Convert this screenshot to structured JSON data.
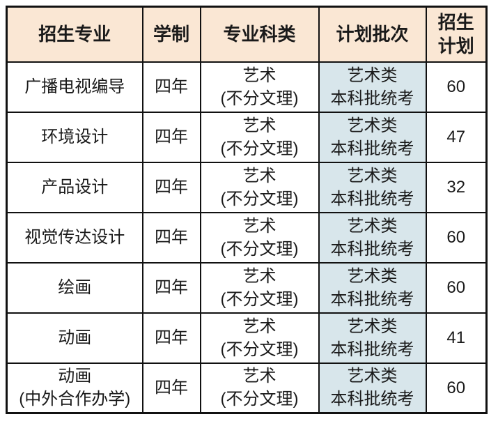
{
  "colors": {
    "page_background": "#FFFFFF",
    "header_background": "#FAE7D4",
    "batch_cell_background": "#D8E6EB",
    "border": "#111111",
    "text": "#1A1A1A"
  },
  "table": {
    "headers": {
      "major": "招生专业",
      "duration": "学制",
      "category": "专业科类",
      "batch": "计划批次",
      "quota_line1": "招生",
      "quota_line2": "计划"
    },
    "rows": [
      {
        "major": [
          "广播电视编导"
        ],
        "duration": "四年",
        "category": [
          "艺术",
          "(不分文理)"
        ],
        "batch": [
          "艺术类",
          "本科批统考"
        ],
        "quota": "60"
      },
      {
        "major": [
          "环境设计"
        ],
        "duration": "四年",
        "category": [
          "艺术",
          "(不分文理)"
        ],
        "batch": [
          "艺术类",
          "本科批统考"
        ],
        "quota": "47"
      },
      {
        "major": [
          "产品设计"
        ],
        "duration": "四年",
        "category": [
          "艺术",
          "(不分文理)"
        ],
        "batch": [
          "艺术类",
          "本科批统考"
        ],
        "quota": "32"
      },
      {
        "major": [
          "视觉传达设计"
        ],
        "duration": "四年",
        "category": [
          "艺术",
          "(不分文理)"
        ],
        "batch": [
          "艺术类",
          "本科批统考"
        ],
        "quota": "60"
      },
      {
        "major": [
          "绘画"
        ],
        "duration": "四年",
        "category": [
          "艺术",
          "(不分文理)"
        ],
        "batch": [
          "艺术类",
          "本科批统考"
        ],
        "quota": "60"
      },
      {
        "major": [
          "动画"
        ],
        "duration": "四年",
        "category": [
          "艺术",
          "(不分文理)"
        ],
        "batch": [
          "艺术类",
          "本科批统考"
        ],
        "quota": "41"
      },
      {
        "major": [
          "动画",
          "(中外合作办学)"
        ],
        "duration": "四年",
        "category": [
          "艺术",
          "(不分文理)"
        ],
        "batch": [
          "艺术类",
          "本科批统考"
        ],
        "quota": "60"
      }
    ]
  }
}
